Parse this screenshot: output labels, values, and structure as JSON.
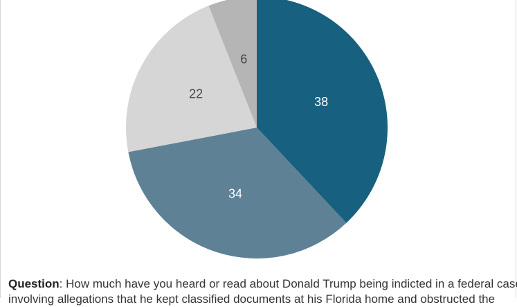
{
  "chart_data": {
    "type": "pie",
    "values": [
      38,
      34,
      22,
      6
    ],
    "labels": [
      "38",
      "34",
      "22",
      "6"
    ],
    "colors": [
      "#17607f",
      "#5e8196",
      "#d6d6d6",
      "#b5b5b5"
    ],
    "label_colors": [
      "#ffffff",
      "#ffffff",
      "#444444",
      "#444444"
    ]
  },
  "caption": {
    "bold": "Question",
    "line1": ": How much have you heard or read about Donald Trump being indicted in a federal case",
    "line2": "involving allegations that he kept classified documents at his Florida home and obstructed the"
  }
}
